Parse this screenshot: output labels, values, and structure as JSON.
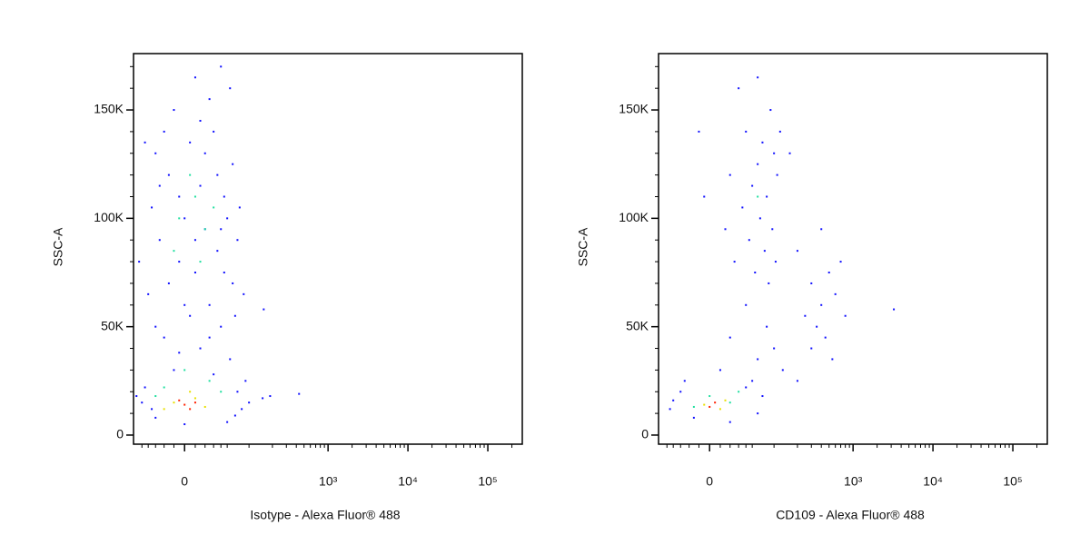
{
  "chart_data": [
    {
      "type": "scatter",
      "xlabel": "Isotype - Alexa Fluor® 488",
      "ylabel": "SSC-A",
      "xscale": "arcsinh",
      "xlim": [
        -66,
        270000
      ],
      "ylim": [
        -4200,
        176000
      ],
      "xticks": [
        0,
        {
          "value": 1000,
          "label": "10³"
        },
        {
          "value": 10000,
          "label": "10⁴"
        },
        {
          "value": 100000,
          "label": "10⁵"
        }
      ],
      "yticks": [
        0,
        {
          "value": 50000,
          "label": "50K"
        },
        {
          "value": 100000,
          "label": "100K"
        },
        {
          "value": 150000,
          "label": "150K"
        }
      ],
      "xminor": [
        -50,
        -40,
        -30,
        -20,
        -10,
        10,
        20,
        30,
        40,
        50,
        100,
        200,
        300,
        400,
        500,
        600,
        700,
        800,
        900,
        2000,
        3000,
        4000,
        5000,
        6000,
        7000,
        8000,
        9000,
        20000,
        30000,
        40000,
        50000,
        60000,
        70000,
        80000,
        90000,
        200000
      ],
      "yminor": [
        10000,
        20000,
        30000,
        40000,
        60000,
        70000,
        80000,
        90000,
        110000,
        120000,
        130000,
        140000,
        160000,
        170000
      ],
      "series": [
        {
          "color": "#1010ff",
          "x": [
            -20,
            10,
            40,
            -10,
            25,
            55,
            -30,
            5,
            30,
            60,
            -15,
            15,
            45,
            -35,
            0,
            20,
            50,
            70,
            -25,
            35,
            -5,
            10,
            60,
            -40,
            25,
            5,
            40,
            -20,
            15,
            55,
            -10,
            30,
            -45,
            70,
            -50,
            80,
            -30,
            50,
            0,
            -60,
            90,
            20,
            -5,
            35,
            10,
            -15,
            45,
            0,
            -30,
            65,
            25,
            -5,
            -25,
            40,
            15,
            -45,
            75,
            -55,
            85,
            155,
            187,
            433,
            150,
            -35,
            65,
            100
          ],
          "values": [
            140000,
            165000,
            170000,
            150000,
            155000,
            160000,
            130000,
            135000,
            140000,
            125000,
            120000,
            115000,
            110000,
            105000,
            100000,
            95000,
            100000,
            90000,
            90000,
            85000,
            80000,
            75000,
            70000,
            65000,
            60000,
            55000,
            50000,
            45000,
            40000,
            35000,
            30000,
            28000,
            22000,
            20000,
            15000,
            12000,
            8000,
            6000,
            5000,
            18000,
            25000,
            130000,
            110000,
            120000,
            90000,
            70000,
            75000,
            60000,
            50000,
            55000,
            45000,
            38000,
            115000,
            95000,
            145000,
            135000,
            105000,
            80000,
            65000,
            58000,
            18000,
            19000,
            17000,
            12000,
            9000,
            15000
          ]
        },
        {
          "color": "#20e0a0",
          "x": [
            10,
            -5,
            20,
            5,
            30,
            -10,
            15,
            0,
            25,
            -20,
            40,
            -30
          ],
          "values": [
            110000,
            100000,
            95000,
            120000,
            105000,
            85000,
            80000,
            30000,
            25000,
            22000,
            20000,
            18000
          ]
        },
        {
          "color": "#e8e000",
          "x": [
            -10,
            10,
            20,
            -20,
            5
          ],
          "values": [
            15000,
            17000,
            13000,
            12000,
            20000
          ]
        },
        {
          "color": "#ff2000",
          "x": [
            0,
            5,
            -5,
            10
          ],
          "values": [
            14000,
            12000,
            16000,
            15000
          ]
        }
      ]
    },
    {
      "type": "scatter",
      "xlabel": "CD109 - Alexa Fluor® 488",
      "ylabel": "SSC-A",
      "xscale": "arcsinh",
      "xlim": [
        -66,
        270000
      ],
      "ylim": [
        -4200,
        176000
      ],
      "xticks": [
        0,
        {
          "value": 1000,
          "label": "10³"
        },
        {
          "value": 10000,
          "label": "10⁴"
        },
        {
          "value": 100000,
          "label": "10⁵"
        }
      ],
      "yticks": [
        0,
        {
          "value": 50000,
          "label": "50K"
        },
        {
          "value": 100000,
          "label": "100K"
        },
        {
          "value": 150000,
          "label": "150K"
        }
      ],
      "xminor": [
        -50,
        -40,
        -30,
        -20,
        -10,
        10,
        20,
        30,
        40,
        50,
        100,
        200,
        300,
        400,
        500,
        600,
        700,
        800,
        900,
        2000,
        3000,
        4000,
        5000,
        6000,
        7000,
        8000,
        9000,
        20000,
        30000,
        40000,
        50000,
        60000,
        70000,
        80000,
        90000,
        200000
      ],
      "yminor": [
        10000,
        20000,
        30000,
        40000,
        60000,
        70000,
        80000,
        90000,
        110000,
        120000,
        130000,
        140000,
        160000,
        170000
      ],
      "series": [
        {
          "color": "#1010ff",
          "x": [
            30,
            60,
            90,
            40,
            70,
            100,
            20,
            50,
            80,
            110,
            35,
            65,
            95,
            15,
            45,
            75,
            105,
            25,
            55,
            85,
            -5,
            120,
            60,
            40,
            80,
            20,
            100,
            60,
            130,
            10,
            200,
            300,
            400,
            500,
            250,
            350,
            600,
            450,
            700,
            300,
            550,
            200,
            400,
            800,
            -30,
            -45,
            40,
            60,
            -15,
            20,
            70,
            -40,
            50,
            -25,
            3240,
            160,
            -10
          ],
          "values": [
            160000,
            165000,
            150000,
            140000,
            135000,
            130000,
            120000,
            115000,
            110000,
            120000,
            105000,
            100000,
            95000,
            95000,
            90000,
            85000,
            80000,
            80000,
            75000,
            70000,
            110000,
            140000,
            125000,
            60000,
            50000,
            45000,
            40000,
            35000,
            30000,
            30000,
            85000,
            70000,
            60000,
            75000,
            55000,
            50000,
            65000,
            45000,
            80000,
            40000,
            35000,
            25000,
            95000,
            55000,
            20000,
            12000,
            22000,
            10000,
            8000,
            6000,
            18000,
            16000,
            25000,
            25000,
            58000,
            130000,
            140000
          ]
        },
        {
          "color": "#20e0a0",
          "x": [
            0,
            20,
            -15,
            60,
            30
          ],
          "values": [
            18000,
            15000,
            13000,
            110000,
            20000
          ]
        },
        {
          "color": "#e8e000",
          "x": [
            -5,
            10,
            15
          ],
          "values": [
            14000,
            12000,
            16000
          ]
        },
        {
          "color": "#ff2000",
          "x": [
            0,
            5
          ],
          "values": [
            13000,
            15000
          ]
        }
      ]
    }
  ]
}
